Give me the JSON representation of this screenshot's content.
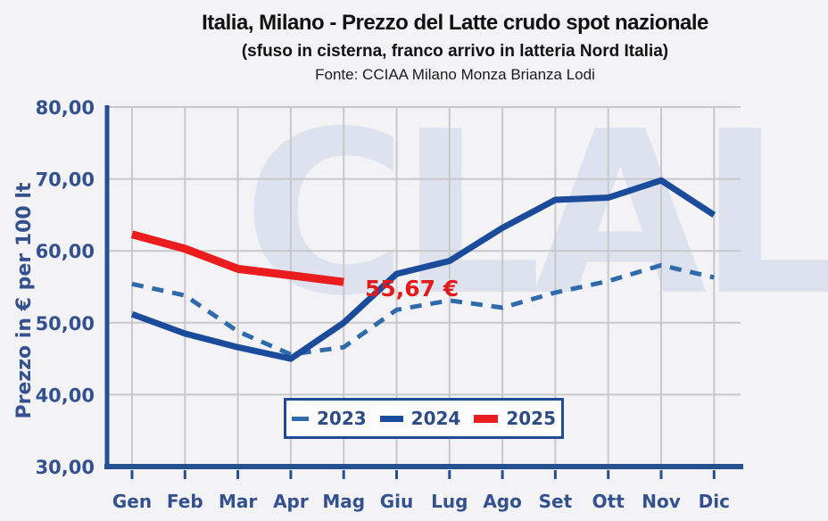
{
  "header": {
    "title": "Italia, Milano - Prezzo del Latte crudo spot nazionale",
    "subtitle": "(sfuso in cisterna, franco arrivo in latteria Nord Italia)",
    "source": "Fonte: CCIAA Milano Monza Brianza Lodi"
  },
  "watermark": "CLAL",
  "colors": {
    "background": "#f3f3f5",
    "gridline": "#c8c8ca",
    "axis": "#24508f",
    "tick_text": "#34518f",
    "legend_border": "#1e4c94",
    "legend_text": "#2d4c85",
    "annotation_red": "#e21a1c"
  },
  "chart_data": {
    "type": "line",
    "title": "Italia, Milano - Prezzo del Latte crudo spot nazionale",
    "subtitle": "(sfuso in cisterna, franco arrivo in latteria Nord Italia)",
    "source": "Fonte: CCIAA Milano Monza Brianza Lodi",
    "categories": [
      "Gen",
      "Feb",
      "Mar",
      "Apr",
      "Mag",
      "Giu",
      "Lug",
      "Ago",
      "Set",
      "Ott",
      "Nov",
      "Dic"
    ],
    "series": [
      {
        "name": "2023",
        "style": "dashed",
        "color": "#2f6aad",
        "values": [
          55.4,
          53.8,
          48.8,
          45.6,
          46.6,
          51.8,
          53.1,
          52.1,
          54.2,
          55.8,
          58.0,
          56.3
        ]
      },
      {
        "name": "2024",
        "style": "solid",
        "color": "#1b4c9c",
        "values": [
          51.2,
          48.5,
          46.6,
          45.0,
          50.0,
          56.8,
          58.6,
          63.2,
          67.1,
          67.4,
          69.8,
          65.0
        ]
      },
      {
        "name": "2025",
        "style": "solid",
        "color": "#ea1c1e",
        "values": [
          62.3,
          60.3,
          57.5,
          56.6,
          55.67
        ]
      }
    ],
    "xlabel": "",
    "ylabel": "Prezzo in € per 100 lt",
    "ylim": [
      30,
      80
    ],
    "y_ticks": [
      80,
      70,
      60,
      50,
      40,
      30
    ],
    "y_tick_labels": [
      "80,00",
      "70,00",
      "60,00",
      "50,00",
      "40,00",
      "30,00"
    ],
    "grid": true,
    "legend_position": "bottom-center",
    "annotation": {
      "text": "55,67 €",
      "color": "#e21a1c",
      "series": "2025",
      "category": "Mag"
    }
  }
}
